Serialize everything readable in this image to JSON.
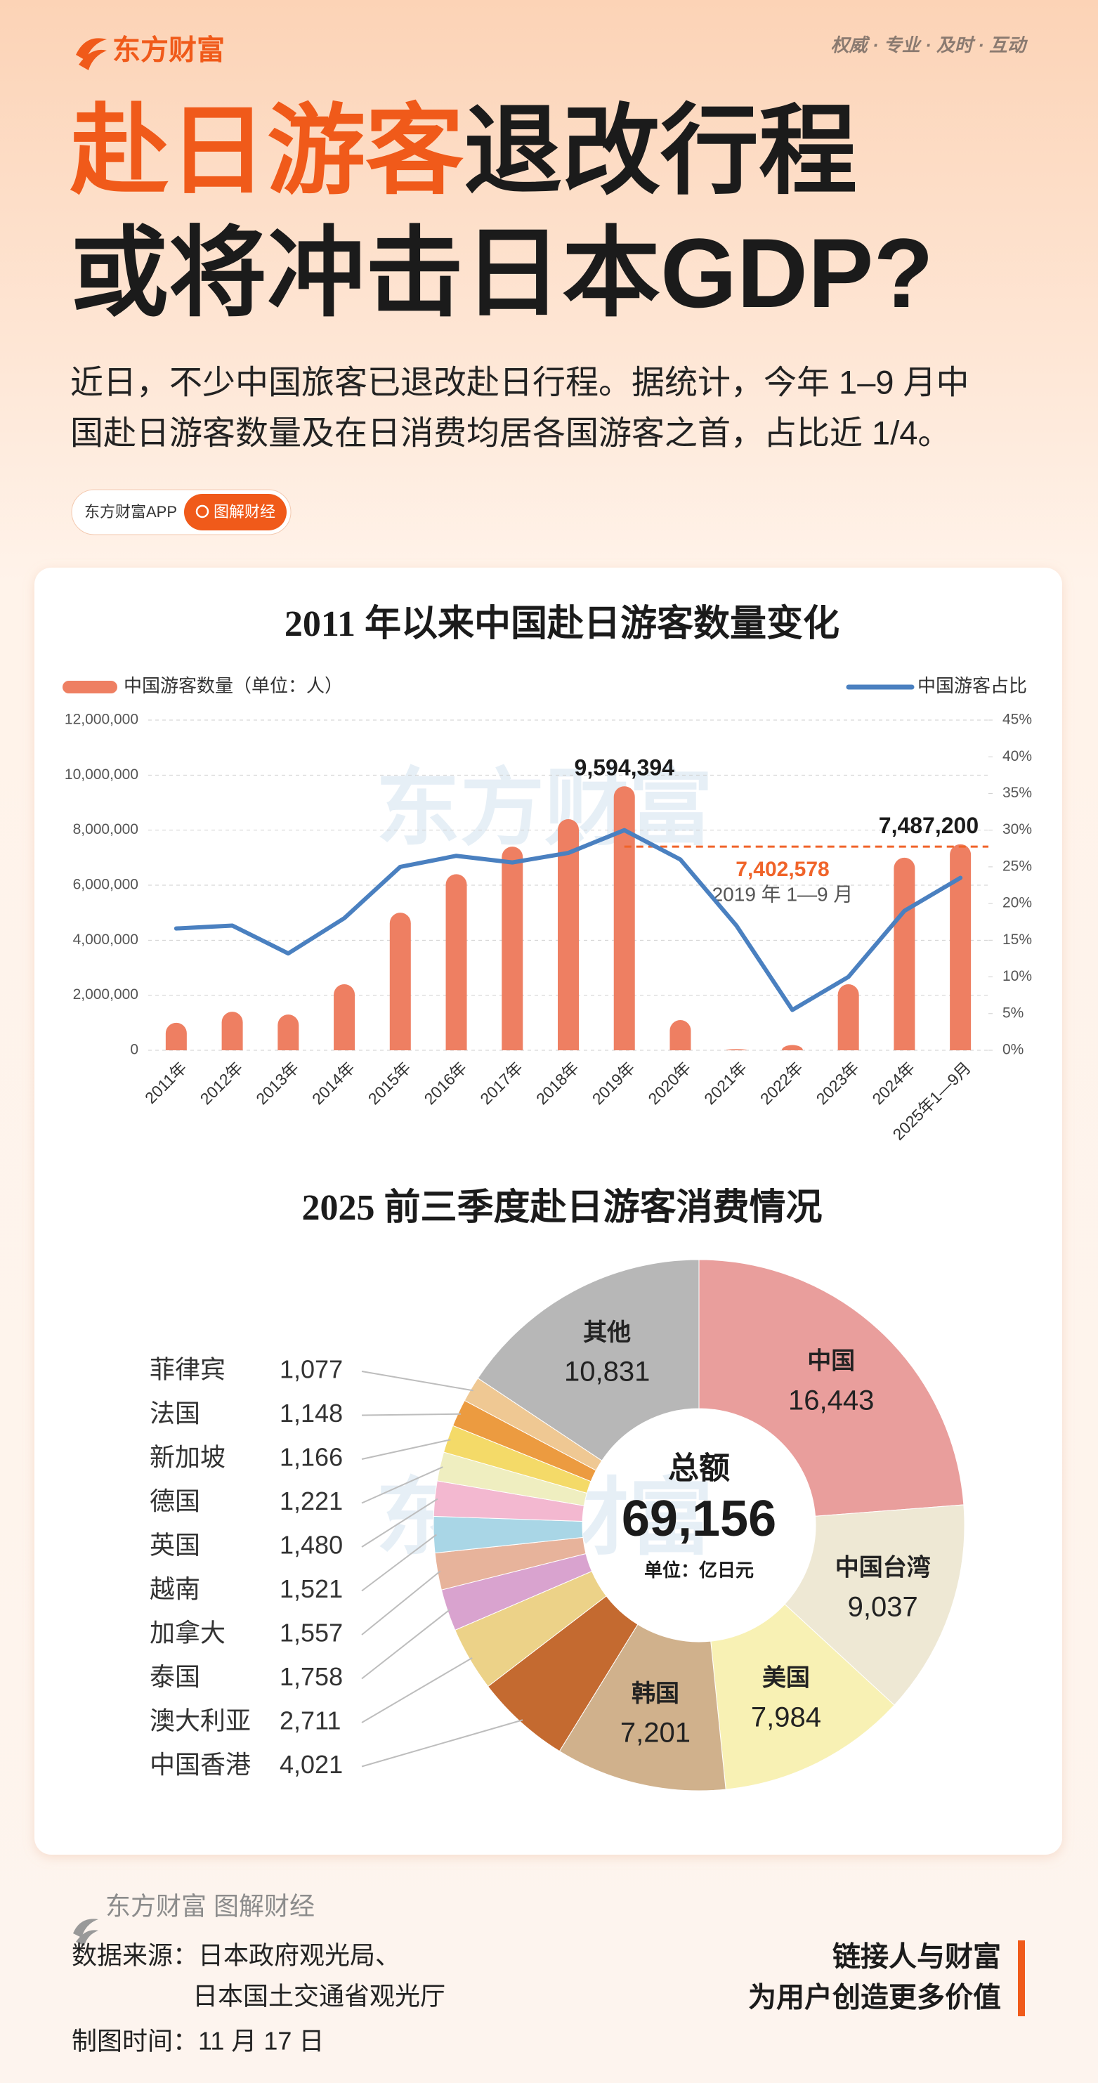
{
  "header": {
    "brand": "东方财富",
    "slogan": "权威 · 专业 · 及时 · 互动",
    "title_highlight": "赴日游客",
    "title_rest": "退改行程",
    "title_line2": "或将冲击日本GDP?",
    "subtitle_line1": "近日，不少中国旅客已退改赴日行程。据统计，今年 1–9 月中",
    "subtitle_line2": "国赴日游客数量及在日消费均居各国游客之首，占比近 1/4。",
    "badge_app": "东方财富APP",
    "badge_tag": "图解财经",
    "watermark": "东方财富"
  },
  "chart_data": [
    {
      "type": "bar_line",
      "title": "2011 年以来中国赴日游客数量变化",
      "categories": [
        "2011年",
        "2012年",
        "2013年",
        "2014年",
        "2015年",
        "2016年",
        "2017年",
        "2018年",
        "2019年",
        "2020年",
        "2021年",
        "2022年",
        "2023年",
        "2024年",
        "2025年1—9月"
      ],
      "series": [
        {
          "name": "中国游客数量（单位：人）",
          "color": "#ee7f62",
          "values": [
            1000000,
            1400000,
            1300000,
            2400000,
            5000000,
            6400000,
            7400000,
            8400000,
            9594394,
            1100000,
            40000,
            190000,
            2400000,
            7000000,
            7487200
          ],
          "value_labels": [
            null,
            null,
            null,
            null,
            null,
            null,
            null,
            null,
            "9,594,394",
            null,
            null,
            null,
            null,
            null,
            "7,487,200"
          ]
        },
        {
          "name": "中国游客占比",
          "color": "#4a80c0",
          "axis": "y2",
          "values": [
            16.6,
            17,
            13.2,
            18,
            25,
            26.5,
            25.6,
            26.9,
            30,
            26,
            17,
            5.5,
            10,
            19,
            23.5
          ]
        }
      ],
      "ylim": [
        0,
        12000000
      ],
      "yticks": [
        0,
        {
          "value": 2000000,
          "label": "2,000,000"
        },
        {
          "value": 4000000,
          "label": "4,000,000"
        },
        {
          "value": 6000000,
          "label": "6,000,000"
        },
        {
          "value": 8000000,
          "label": "8,000,000"
        },
        {
          "value": 10000000,
          "label": "10,000,000"
        },
        {
          "value": 12000000,
          "label": "12,000,000"
        }
      ],
      "y2lim": [
        0,
        45
      ],
      "y2ticks": [
        {
          "value": 0,
          "label": "0%"
        },
        {
          "value": 5,
          "label": "5%"
        },
        {
          "value": 10,
          "label": "10%"
        },
        {
          "value": 15,
          "label": "15%"
        },
        {
          "value": 20,
          "label": "20%"
        },
        {
          "value": 25,
          "label": "25%"
        },
        {
          "value": 30,
          "label": "30%"
        },
        {
          "value": 35,
          "label": "35%"
        },
        {
          "value": 40,
          "label": "40%"
        },
        {
          "value": 45,
          "label": "45%"
        }
      ],
      "grid": true,
      "reference": {
        "value": 7402578,
        "label": "7,402,578",
        "note": "2019 年 1—9 月",
        "color": "#f0642a"
      }
    },
    {
      "type": "donut",
      "title": "2025 前三季度赴日游客消费情况",
      "center": {
        "title": "总额",
        "value": 69156,
        "value_label": "69,156",
        "unit": "单位：亿日元"
      },
      "categories": [
        "中国",
        "中国台湾",
        "美国",
        "韩国",
        "中国香港",
        "澳大利亚",
        "泰国",
        "加拿大",
        "越南",
        "英国",
        "德国",
        "新加坡",
        "法国",
        "菲律宾",
        "其他"
      ],
      "values": [
        16443,
        9037,
        7984,
        7201,
        4021,
        2711,
        1758,
        1557,
        1521,
        1480,
        1221,
        1166,
        1148,
        1077,
        10831
      ],
      "value_labels": [
        "16,443",
        "9,037",
        "7,984",
        "7,201",
        "4,021",
        "2,711",
        "1,758",
        "1,557",
        "1,521",
        "1,480",
        "1,221",
        "1,166",
        "1,148",
        "1,077",
        "10,831"
      ],
      "colors": [
        "#e99e9c",
        "#eee8d4",
        "#f8f1b4",
        "#d0b18c",
        "#c46a30",
        "#ecd288",
        "#d9a3cf",
        "#e7b39b",
        "#a9d6e6",
        "#f3b8d0",
        "#efeec0",
        "#f4da68",
        "#ec9b40",
        "#efc893",
        "#b7b7b7"
      ]
    }
  ],
  "footer": {
    "brand": "东方财富 图解财经",
    "source_line1": "数据来源：日本政府观光局、",
    "source_line2": "日本国土交通省观光厅",
    "date": "制图时间：11 月 17 日",
    "motto_line1": "链接人与财富",
    "motto_line2": "为用户创造更多价值"
  }
}
